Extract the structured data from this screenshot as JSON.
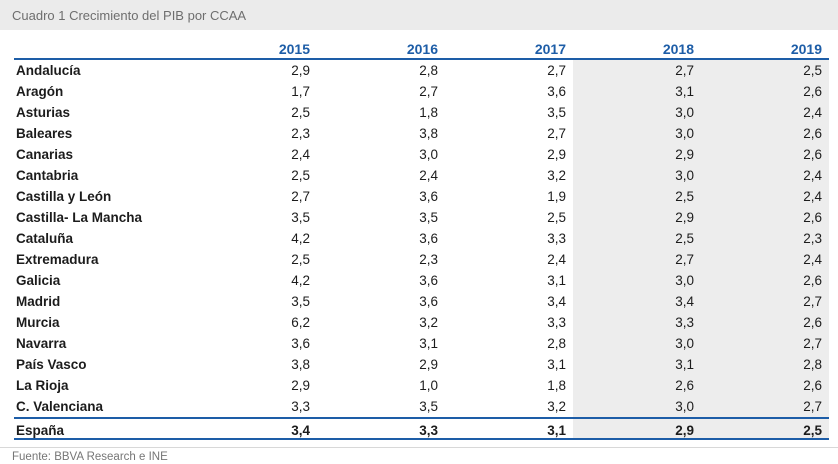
{
  "title": "Cuadro 1 Crecimiento del PIB por CCAA",
  "source": "Fuente: BBVA Research e INE",
  "colors": {
    "accent_blue": "#1d5da7",
    "header_text": "#1d5da7",
    "title_bar_bg": "#ebebeb",
    "title_text": "#6e6e6e",
    "forecast_band_bg": "#ededed",
    "cell_text": "#1c1c1c",
    "source_text": "#767676",
    "separator_rule": "#d8d8d8"
  },
  "chart_data": {
    "type": "table",
    "title": "Cuadro 1 Crecimiento del PIB por CCAA",
    "columns": [
      "2015",
      "2016",
      "2017",
      "2018",
      "2019"
    ],
    "highlighted_columns": [
      3,
      4
    ],
    "rows": [
      {
        "label": "Andalucía",
        "values": [
          "2,9",
          "2,8",
          "2,7",
          "2,7",
          "2,5"
        ]
      },
      {
        "label": "Aragón",
        "values": [
          "1,7",
          "2,7",
          "3,6",
          "3,1",
          "2,6"
        ]
      },
      {
        "label": "Asturias",
        "values": [
          "2,5",
          "1,8",
          "3,5",
          "3,0",
          "2,4"
        ]
      },
      {
        "label": "Baleares",
        "values": [
          "2,3",
          "3,8",
          "2,7",
          "3,0",
          "2,6"
        ]
      },
      {
        "label": "Canarias",
        "values": [
          "2,4",
          "3,0",
          "2,9",
          "2,9",
          "2,6"
        ]
      },
      {
        "label": "Cantabria",
        "values": [
          "2,5",
          "2,4",
          "3,2",
          "3,0",
          "2,4"
        ]
      },
      {
        "label": "Castilla y León",
        "values": [
          "2,7",
          "3,6",
          "1,9",
          "2,5",
          "2,4"
        ]
      },
      {
        "label": "Castilla- La Mancha",
        "values": [
          "3,5",
          "3,5",
          "2,5",
          "2,9",
          "2,6"
        ]
      },
      {
        "label": "Cataluña",
        "values": [
          "4,2",
          "3,6",
          "3,3",
          "2,5",
          "2,3"
        ]
      },
      {
        "label": "Extremadura",
        "values": [
          "2,5",
          "2,3",
          "2,4",
          "2,7",
          "2,4"
        ]
      },
      {
        "label": "Galicia",
        "values": [
          "4,2",
          "3,6",
          "3,1",
          "3,0",
          "2,6"
        ]
      },
      {
        "label": "Madrid",
        "values": [
          "3,5",
          "3,6",
          "3,4",
          "3,4",
          "2,7"
        ]
      },
      {
        "label": "Murcia",
        "values": [
          "6,2",
          "3,2",
          "3,3",
          "3,3",
          "2,6"
        ]
      },
      {
        "label": "Navarra",
        "values": [
          "3,6",
          "3,1",
          "2,8",
          "3,0",
          "2,7"
        ]
      },
      {
        "label": "País Vasco",
        "values": [
          "3,8",
          "2,9",
          "3,1",
          "3,1",
          "2,8"
        ]
      },
      {
        "label": "La Rioja",
        "values": [
          "2,9",
          "1,0",
          "1,8",
          "2,6",
          "2,6"
        ]
      },
      {
        "label": "C. Valenciana",
        "values": [
          "3,3",
          "3,5",
          "3,2",
          "3,0",
          "2,7"
        ]
      }
    ],
    "total_row": {
      "label": "España",
      "values": [
        "3,4",
        "3,3",
        "3,1",
        "2,9",
        "2,5"
      ]
    }
  }
}
